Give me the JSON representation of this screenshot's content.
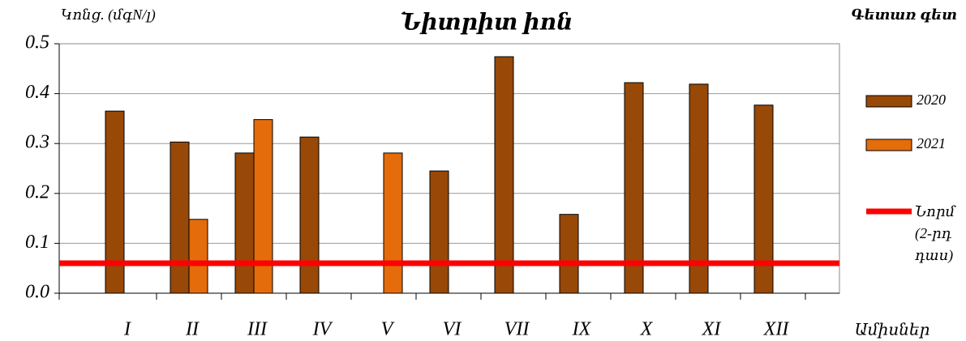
{
  "chart_data": {
    "type": "bar",
    "title": "Նիտրիտ իոն",
    "y_label": "Կոնց. (մգN/լ)",
    "subtitle": "Գետառ գետ",
    "x_label": "Ամիսներ",
    "categories": [
      "I",
      "II",
      "III",
      "IV",
      "V",
      "VI",
      "VII",
      "IX",
      "X",
      "XI",
      "XII"
    ],
    "series": [
      {
        "name": "2020",
        "color": "#984807",
        "values": [
          0.365,
          0.303,
          0.281,
          0.313,
          null,
          0.245,
          0.474,
          0.158,
          0.422,
          0.419,
          0.377
        ]
      },
      {
        "name": "2021",
        "color": "#e46c0a",
        "values": [
          null,
          0.148,
          0.348,
          null,
          0.281,
          null,
          null,
          null,
          null,
          null,
          null
        ]
      }
    ],
    "norm": {
      "name": "Նորմ (2-րդ դաս)",
      "value": 0.06,
      "color": "#ff0000"
    },
    "ylim": [
      0,
      0.5
    ],
    "yticks": [
      {
        "value": 0,
        "label": "0.0"
      },
      0.1,
      0.2,
      0.3,
      0.4,
      0.5
    ],
    "grid": true
  }
}
